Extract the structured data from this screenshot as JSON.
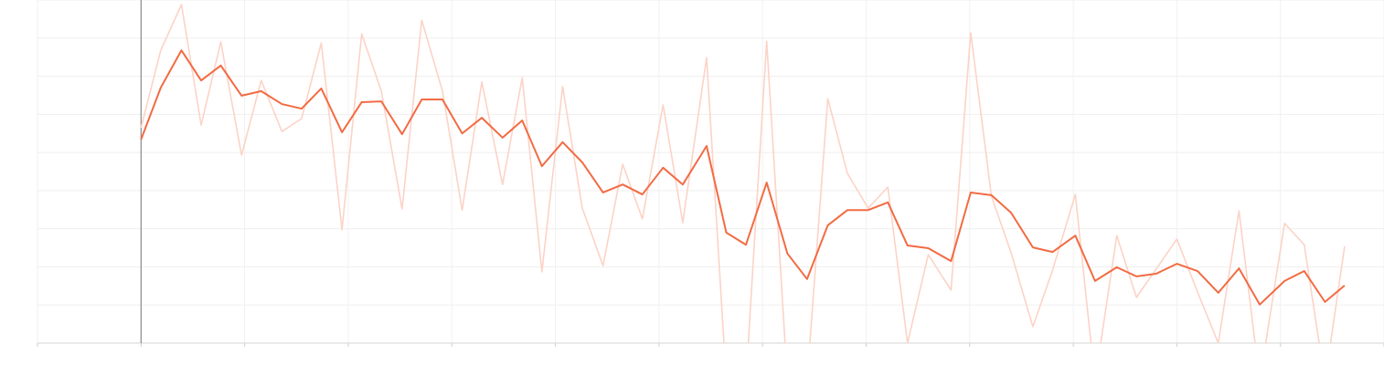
{
  "chart_data": {
    "type": "line",
    "x": [
      1.0,
      1.19,
      1.39,
      1.58,
      1.77,
      1.97,
      2.16,
      2.36,
      2.55,
      2.74,
      2.94,
      3.13,
      3.32,
      3.52,
      3.71,
      3.91,
      4.1,
      4.29,
      4.49,
      4.68,
      4.87,
      5.07,
      5.26,
      5.46,
      5.65,
      5.84,
      6.04,
      6.23,
      6.46,
      6.65,
      6.84,
      7.04,
      7.24,
      7.43,
      7.63,
      7.82,
      8.02,
      8.21,
      8.4,
      8.6,
      8.82,
      9.01,
      9.21,
      9.4,
      9.61,
      9.8,
      10.02,
      10.21,
      10.42,
      10.61,
      10.8,
      11.0,
      11.2,
      11.4,
      11.6,
      11.8,
      12.04,
      12.23,
      12.43,
      12.62
    ],
    "series": [
      {
        "color": "#fcd3c6",
        "values": [
          5.65,
          7.68,
          8.88,
          5.72,
          7.9,
          4.93,
          6.89,
          5.55,
          5.89,
          7.87,
          2.97,
          8.11,
          6.61,
          3.52,
          8.47,
          6.61,
          3.49,
          6.85,
          4.16,
          6.96,
          1.87,
          6.73,
          3.54,
          2.03,
          4.69,
          3.26,
          6.25,
          3.16,
          7.49,
          -1.0,
          -1.0,
          7.92,
          -1.0,
          -1.0,
          6.41,
          4.45,
          3.54,
          4.09,
          0.0,
          2.32,
          1.39,
          8.14,
          3.85,
          2.37,
          0.43,
          1.91,
          3.9,
          -1.0,
          2.82,
          1.2,
          1.94,
          2.73,
          1.34,
          0.0,
          3.47,
          -1.0,
          3.14,
          2.58,
          -1.0,
          2.54
        ]
      },
      {
        "color": "#f26b43",
        "values": [
          5.34,
          6.7,
          7.68,
          6.89,
          7.28,
          6.49,
          6.61,
          6.27,
          6.15,
          6.68,
          5.53,
          6.32,
          6.34,
          5.48,
          6.39,
          6.39,
          5.5,
          5.91,
          5.39,
          5.84,
          4.64,
          5.27,
          4.74,
          3.95,
          4.16,
          3.9,
          4.6,
          4.16,
          5.17,
          2.9,
          2.58,
          4.21,
          2.35,
          1.68,
          3.09,
          3.49,
          3.49,
          3.69,
          2.56,
          2.49,
          2.15,
          3.95,
          3.88,
          3.42,
          2.51,
          2.39,
          2.82,
          1.63,
          1.99,
          1.75,
          1.82,
          2.08,
          1.89,
          1.32,
          1.96,
          1.01,
          1.63,
          1.89,
          1.08,
          1.51
        ]
      }
    ],
    "xlim": [
      0,
      13
    ],
    "xticks": [
      0,
      1,
      2,
      3,
      4,
      5,
      6,
      7,
      8,
      9,
      10,
      11,
      12,
      13
    ],
    "ylim": [
      0,
      9
    ],
    "yticks": [
      0,
      1,
      2,
      3,
      4,
      5,
      6,
      7,
      8,
      9
    ],
    "grid": true,
    "marker_x": 1
  }
}
